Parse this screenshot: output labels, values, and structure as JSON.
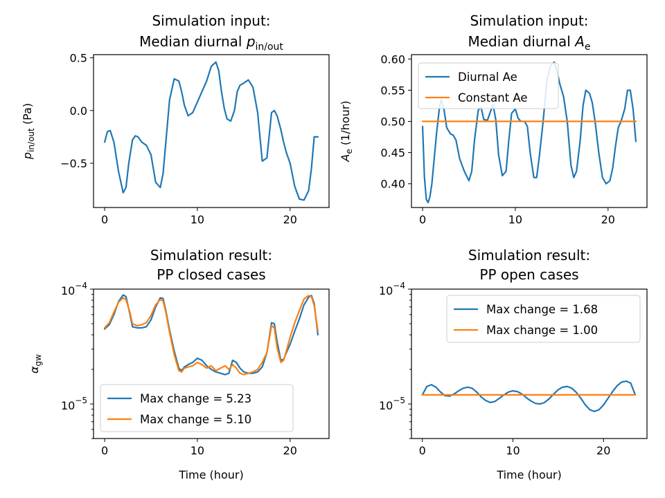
{
  "colors": {
    "blue": "#1f77b4",
    "orange": "#ff7f0e"
  },
  "chart_data": [
    {
      "id": "p1",
      "type": "line",
      "title": [
        "Simulation input:",
        "Median diurnal "
      ],
      "title_math": {
        "symbol": "p",
        "sub": "in/out"
      },
      "xlabel": "",
      "ylabel": {
        "symbol": "p",
        "sub": "in/out",
        "suffix": " (Pa)"
      },
      "xlim": [
        -1.2,
        24.2
      ],
      "ylim": [
        -0.92,
        0.53
      ],
      "yscale": "linear",
      "xticks": [
        0,
        10,
        20
      ],
      "xtick_labels": [
        "0",
        "10",
        "20"
      ],
      "yticks": [
        -0.5,
        0.0,
        0.5
      ],
      "ytick_labels": [
        "−0.5",
        "0.0",
        "0.5"
      ],
      "legend": null,
      "series": [
        {
          "color": "blue",
          "x": [
            0,
            0.3,
            0.6,
            1,
            1.5,
            2,
            2.3,
            2.6,
            3,
            3.3,
            3.6,
            4,
            4.5,
            5,
            5.5,
            6,
            6.3,
            6.6,
            7,
            7.5,
            8,
            8.3,
            8.6,
            9,
            9.5,
            10,
            10.3,
            10.6,
            11,
            11.5,
            12,
            12.3,
            12.6,
            12.9,
            13.2,
            13.6,
            14,
            14.3,
            14.6,
            15,
            15.5,
            16,
            16.5,
            17,
            17.5,
            18,
            18.3,
            18.6,
            19,
            19.3,
            19.6,
            20,
            20.5,
            21,
            21.5,
            22,
            22.3,
            22.6,
            23
          ],
          "y": [
            -0.3,
            -0.2,
            -0.19,
            -0.3,
            -0.58,
            -0.78,
            -0.73,
            -0.5,
            -0.28,
            -0.24,
            -0.25,
            -0.3,
            -0.33,
            -0.42,
            -0.68,
            -0.73,
            -0.6,
            -0.3,
            0.1,
            0.3,
            0.28,
            0.18,
            0.05,
            -0.05,
            -0.02,
            0.08,
            0.14,
            0.2,
            0.28,
            0.42,
            0.46,
            0.38,
            0.18,
            0.02,
            -0.08,
            -0.1,
            0.0,
            0.18,
            0.24,
            0.26,
            0.29,
            0.22,
            -0.02,
            -0.48,
            -0.45,
            -0.02,
            0.0,
            -0.05,
            -0.18,
            -0.3,
            -0.4,
            -0.5,
            -0.72,
            -0.84,
            -0.85,
            -0.76,
            -0.55,
            -0.25,
            -0.25
          ]
        }
      ]
    },
    {
      "id": "p2",
      "type": "line",
      "title": [
        "Simulation input:",
        "Median diurnal "
      ],
      "title_math": {
        "symbol": "A",
        "sub": "e"
      },
      "xlabel": "",
      "ylabel": {
        "symbol": "A",
        "sub": "e",
        "suffix": " (1/hour)"
      },
      "xlim": [
        -1.2,
        24.2
      ],
      "ylim": [
        0.362,
        0.607
      ],
      "yscale": "linear",
      "xticks": [
        0,
        10,
        20
      ],
      "xtick_labels": [
        "0",
        "10",
        "20"
      ],
      "yticks": [
        0.4,
        0.45,
        0.5,
        0.55,
        0.6
      ],
      "ytick_labels": [
        "0.40",
        "0.45",
        "0.50",
        "0.55",
        "0.60"
      ],
      "legend": {
        "placement": "upper left",
        "entries": [
          "Diurnal Ae",
          "Constant Ae"
        ]
      },
      "series": [
        {
          "name": "Diurnal Ae",
          "color": "blue",
          "x": [
            0,
            0.2,
            0.4,
            0.6,
            0.8,
            1,
            1.5,
            1.8,
            2,
            2.3,
            2.6,
            3,
            3.3,
            3.6,
            4,
            4.5,
            5,
            5.3,
            5.6,
            6,
            6.3,
            6.6,
            7,
            7.3,
            7.6,
            7.9,
            8.2,
            8.6,
            9,
            9.3,
            9.6,
            10,
            10.3,
            10.6,
            11,
            11.3,
            11.6,
            12,
            12.3,
            12.6,
            13,
            13.4,
            13.8,
            14.2,
            14.5,
            14.8,
            15.2,
            15.6,
            16,
            16.3,
            16.6,
            17,
            17.3,
            17.6,
            18,
            18.3,
            18.6,
            19,
            19.4,
            19.8,
            20.2,
            20.5,
            20.8,
            21.1,
            21.4,
            21.8,
            22.1,
            22.4,
            22.7,
            23
          ],
          "y": [
            0.492,
            0.41,
            0.375,
            0.37,
            0.38,
            0.4,
            0.48,
            0.52,
            0.535,
            0.52,
            0.49,
            0.48,
            0.478,
            0.47,
            0.44,
            0.42,
            0.405,
            0.42,
            0.47,
            0.518,
            0.523,
            0.503,
            0.502,
            0.515,
            0.527,
            0.502,
            0.446,
            0.413,
            0.42,
            0.47,
            0.513,
            0.52,
            0.505,
            0.5,
            0.5,
            0.492,
            0.45,
            0.41,
            0.41,
            0.445,
            0.5,
            0.565,
            0.59,
            0.595,
            0.58,
            0.56,
            0.54,
            0.5,
            0.43,
            0.41,
            0.42,
            0.47,
            0.525,
            0.55,
            0.545,
            0.53,
            0.5,
            0.45,
            0.41,
            0.4,
            0.405,
            0.425,
            0.46,
            0.49,
            0.5,
            0.52,
            0.55,
            0.55,
            0.52,
            0.468
          ]
        },
        {
          "name": "Constant Ae",
          "color": "orange",
          "x": [
            0,
            23
          ],
          "y": [
            0.5,
            0.5
          ]
        }
      ]
    },
    {
      "id": "p3",
      "type": "line",
      "title": [
        "Simulation result:",
        "PP closed cases"
      ],
      "title_math": null,
      "xlabel": "Time (hour)",
      "ylabel": {
        "symbol": "α",
        "sub": "gw",
        "suffix": ""
      },
      "xlim": [
        -1.2,
        24.2
      ],
      "ylim": [
        5e-06,
        0.0001
      ],
      "yscale": "log",
      "xticks": [
        0,
        10,
        20
      ],
      "xtick_labels": [
        "0",
        "10",
        "20"
      ],
      "yticks": [
        1e-05,
        0.0001
      ],
      "ytick_labels": [
        {
          "base": "10",
          "exp": "−5"
        },
        {
          "base": "10",
          "exp": "−4"
        }
      ],
      "legend": {
        "placement": "lower left",
        "entries": [
          "Max change = 5.23",
          "Max change = 5.10"
        ]
      },
      "series": [
        {
          "name": "Max change = 5.23",
          "color": "blue",
          "x": [
            0,
            0.5,
            1,
            1.5,
            2,
            2.3,
            2.7,
            3,
            3.5,
            4,
            4.5,
            5,
            5.5,
            6,
            6.3,
            6.6,
            7,
            7.5,
            8,
            8.3,
            8.6,
            9,
            9.5,
            10,
            10.5,
            11,
            11.5,
            12,
            12.5,
            13,
            13.4,
            13.8,
            14.2,
            14.6,
            15,
            15.5,
            16,
            16.5,
            17,
            17.5,
            18,
            18.3,
            18.6,
            19,
            19.3,
            19.6,
            20,
            20.5,
            21,
            21.5,
            22,
            22.3,
            22.6,
            23
          ],
          "y": [
            4.5e-05,
            4.9e-05,
            6e-05,
            7.8e-05,
            8.9e-05,
            8.6e-05,
            6.2e-05,
            4.7e-05,
            4.6e-05,
            4.6e-05,
            4.7e-05,
            5.4e-05,
            7e-05,
            8.4e-05,
            8.3e-05,
            6.5e-05,
            4.4e-05,
            2.9e-05,
            2.05e-05,
            1.95e-05,
            2.1e-05,
            2.2e-05,
            2.3e-05,
            2.5e-05,
            2.4e-05,
            2.15e-05,
            2e-05,
            1.9e-05,
            1.85e-05,
            1.8e-05,
            1.85e-05,
            2.4e-05,
            2.3e-05,
            2.05e-05,
            1.9e-05,
            1.85e-05,
            1.85e-05,
            1.9e-05,
            2.1e-05,
            2.8e-05,
            5.1e-05,
            5e-05,
            3.5e-05,
            2.4e-05,
            2.45e-05,
            2.8e-05,
            3.3e-05,
            4.3e-05,
            5.5e-05,
            7.3e-05,
            8.5e-05,
            8.8e-05,
            7.5e-05,
            4e-05
          ]
        },
        {
          "name": "Max change = 5.10",
          "color": "orange",
          "x": [
            0,
            0.5,
            1,
            1.5,
            2,
            2.3,
            2.7,
            3,
            3.5,
            4,
            4.5,
            5,
            5.5,
            6,
            6.3,
            6.6,
            7,
            7.5,
            8,
            8.3,
            8.6,
            9,
            9.5,
            10,
            10.5,
            11,
            11.5,
            12,
            12.5,
            13,
            13.4,
            13.8,
            14.2,
            14.6,
            15,
            15.5,
            16,
            16.5,
            17,
            17.5,
            18,
            18.3,
            18.6,
            19,
            19.3,
            19.6,
            20,
            20.5,
            21,
            21.5,
            22,
            22.3,
            22.6,
            23
          ],
          "y": [
            4.6e-05,
            5.1e-05,
            6.3e-05,
            7.7e-05,
            8.4e-05,
            8.1e-05,
            6.4e-05,
            5e-05,
            4.8e-05,
            4.9e-05,
            5.1e-05,
            5.9e-05,
            7.3e-05,
            8.1e-05,
            7.9e-05,
            6.3e-05,
            4.2e-05,
            2.7e-05,
            1.95e-05,
            1.9e-05,
            2.05e-05,
            2.1e-05,
            2.15e-05,
            2.3e-05,
            2.2e-05,
            2.05e-05,
            2.15e-05,
            1.95e-05,
            2.05e-05,
            2.15e-05,
            2e-05,
            2.2e-05,
            2.05e-05,
            1.85e-05,
            1.8e-05,
            1.85e-05,
            1.9e-05,
            2e-05,
            2.3e-05,
            2.8e-05,
            4.8e-05,
            4.6e-05,
            3.1e-05,
            2.3e-05,
            2.4e-05,
            2.9e-05,
            3.8e-05,
            5.1e-05,
            6.5e-05,
            8.2e-05,
            8.8e-05,
            8.6e-05,
            7.2e-05,
            4.3e-05
          ]
        }
      ]
    },
    {
      "id": "p4",
      "type": "line",
      "title": [
        "Simulation result:",
        "PP open cases"
      ],
      "title_math": null,
      "xlabel": "Time (hour)",
      "ylabel": null,
      "xlim": [
        -1.2,
        24.8
      ],
      "ylim": [
        5e-06,
        0.0001
      ],
      "yscale": "log",
      "xticks": [
        0,
        10,
        20
      ],
      "xtick_labels": [
        "0",
        "10",
        "20"
      ],
      "yticks": [
        1e-05,
        0.0001
      ],
      "ytick_labels": [
        {
          "base": "10",
          "exp": "−5"
        },
        {
          "base": "10",
          "exp": "−4"
        }
      ],
      "legend": {
        "placement": "upper right",
        "entries": [
          "Max change = 1.68",
          "Max change = 1.00"
        ]
      },
      "series": [
        {
          "name": "Max change = 1.68",
          "color": "blue",
          "x": [
            0,
            0.5,
            1,
            1.5,
            2,
            2.5,
            3,
            3.5,
            4,
            4.5,
            5,
            5.5,
            6,
            6.5,
            7,
            7.5,
            8,
            8.5,
            9,
            9.5,
            10,
            10.5,
            11,
            11.5,
            12,
            12.5,
            13,
            13.5,
            14,
            14.5,
            15,
            15.5,
            16,
            16.5,
            17,
            17.5,
            18,
            18.5,
            19,
            19.5,
            20,
            20.5,
            21,
            21.5,
            22,
            22.5,
            23,
            23.5
          ],
          "y": [
            1.2e-05,
            1.42e-05,
            1.47e-05,
            1.4e-05,
            1.27e-05,
            1.18e-05,
            1.17e-05,
            1.22e-05,
            1.3e-05,
            1.37e-05,
            1.4e-05,
            1.37e-05,
            1.27e-05,
            1.15e-05,
            1.07e-05,
            1.03e-05,
            1.05e-05,
            1.12e-05,
            1.2e-05,
            1.27e-05,
            1.3e-05,
            1.28e-05,
            1.22e-05,
            1.13e-05,
            1.06e-05,
            1.01e-05,
            1e-05,
            1.03e-05,
            1.11e-05,
            1.22e-05,
            1.33e-05,
            1.4e-05,
            1.42e-05,
            1.37e-05,
            1.26e-05,
            1.12e-05,
            9.8e-06,
            8.9e-06,
            8.6e-06,
            8.9e-06,
            9.8e-06,
            1.12e-05,
            1.28e-05,
            1.44e-05,
            1.55e-05,
            1.58e-05,
            1.52e-05,
            1.2e-05
          ]
        },
        {
          "name": "Max change = 1.00",
          "color": "orange",
          "x": [
            0,
            23.5
          ],
          "y": [
            1.2e-05,
            1.2e-05
          ]
        }
      ]
    }
  ]
}
